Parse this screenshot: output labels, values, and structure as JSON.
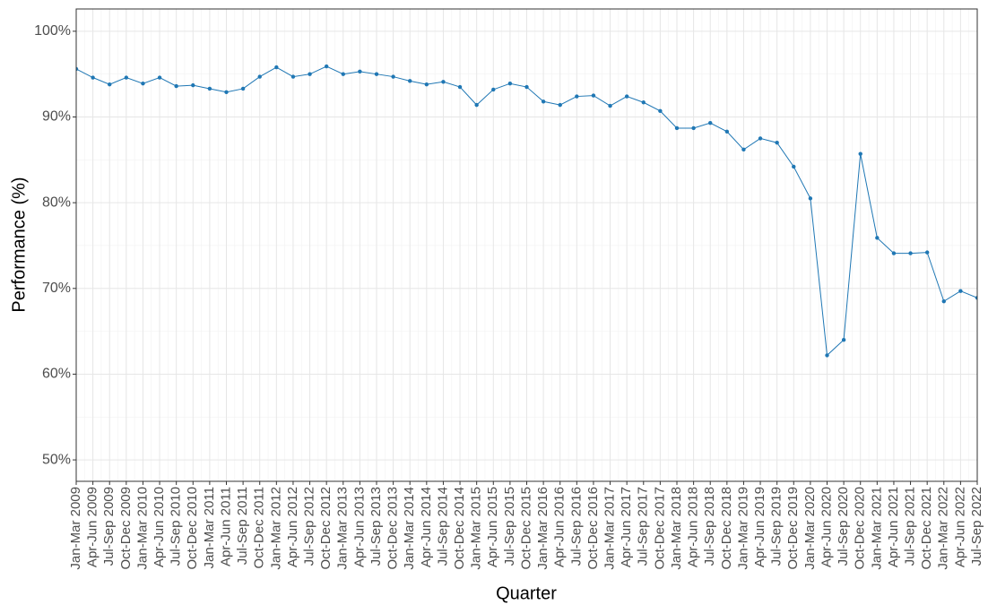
{
  "chart_data": {
    "type": "line",
    "x_label": "Quarter",
    "y_label": "Performance (%)",
    "categories": [
      "Jan-Mar 2009",
      "Apr-Jun 2009",
      "Jul-Sep 2009",
      "Oct-Dec 2009",
      "Jan-Mar 2010",
      "Apr-Jun 2010",
      "Jul-Sep 2010",
      "Oct-Dec 2010",
      "Jan-Mar 2011",
      "Apr-Jun 2011",
      "Jul-Sep 2011",
      "Oct-Dec 2011",
      "Jan-Mar 2012",
      "Apr-Jun 2012",
      "Jul-Sep 2012",
      "Oct-Dec 2012",
      "Jan-Mar 2013",
      "Apr-Jun 2013",
      "Jul-Sep 2013",
      "Oct-Dec 2013",
      "Jan-Mar 2014",
      "Apr-Jun 2014",
      "Jul-Sep 2014",
      "Oct-Dec 2014",
      "Jan-Mar 2015",
      "Apr-Jun 2015",
      "Jul-Sep 2015",
      "Oct-Dec 2015",
      "Jan-Mar 2016",
      "Apr-Jun 2016",
      "Jul-Sep 2016",
      "Oct-Dec 2016",
      "Jan-Mar 2017",
      "Apr-Jun 2017",
      "Jul-Sep 2017",
      "Oct-Dec 2017",
      "Jan-Mar 2018",
      "Apr-Jun 2018",
      "Jul-Sep 2018",
      "Oct-Dec 2018",
      "Jan-Mar 2019",
      "Apr-Jun 2019",
      "Jul-Sep 2019",
      "Oct-Dec 2019",
      "Jan-Mar 2020",
      "Apr-Jun 2020",
      "Jul-Sep 2020",
      "Oct-Dec 2020",
      "Jan-Mar 2021",
      "Apr-Jun 2021",
      "Jul-Sep 2021",
      "Oct-Dec 2021",
      "Jan-Mar 2022",
      "Apr-Jun 2022",
      "Jul-Sep 2022"
    ],
    "values": [
      95.6,
      94.6,
      93.8,
      94.6,
      93.9,
      94.6,
      93.6,
      93.7,
      93.3,
      92.9,
      93.3,
      94.7,
      95.8,
      94.7,
      95.0,
      95.9,
      95.0,
      95.3,
      95.0,
      94.7,
      94.2,
      93.8,
      94.1,
      93.5,
      91.4,
      93.2,
      93.9,
      93.5,
      91.8,
      91.4,
      92.4,
      92.5,
      91.3,
      92.4,
      91.7,
      90.7,
      88.7,
      88.7,
      89.3,
      88.3,
      86.2,
      87.5,
      87.0,
      84.2,
      80.5,
      62.2,
      64.0,
      85.7,
      75.9,
      74.1,
      74.1,
      74.2,
      68.5,
      69.7,
      68.9
    ],
    "color": "#1f77b4",
    "ylim": [
      47.5,
      102.6
    ],
    "yticks": [
      {
        "value": 50,
        "label": "50%"
      },
      {
        "value": 60,
        "label": "60%"
      },
      {
        "value": 70,
        "label": "70%"
      },
      {
        "value": 80,
        "label": "80%"
      },
      {
        "value": 90,
        "label": "90%"
      },
      {
        "value": 100,
        "label": "100%"
      }
    ],
    "minor_yticks": [
      55,
      65,
      75,
      85,
      95
    ],
    "grid": true
  }
}
